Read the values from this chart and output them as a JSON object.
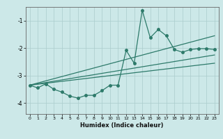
{
  "xlabel": "Humidex (Indice chaleur)",
  "xlim": [
    -0.5,
    23.5
  ],
  "ylim": [
    -4.4,
    -0.5
  ],
  "yticks": [
    -4,
    -3,
    -2,
    -1
  ],
  "xticks": [
    0,
    1,
    2,
    3,
    4,
    5,
    6,
    7,
    8,
    9,
    10,
    11,
    12,
    13,
    14,
    15,
    16,
    17,
    18,
    19,
    20,
    21,
    22,
    23
  ],
  "bg_color": "#cce8e8",
  "grid_color": "#aacccc",
  "line_color": "#2d7a6a",
  "zigzag_x": [
    0,
    1,
    2,
    3,
    4,
    5,
    6,
    7,
    8,
    9,
    10,
    11,
    12,
    13,
    14,
    15,
    16,
    17,
    18,
    19,
    20,
    21,
    22,
    23
  ],
  "zigzag_y": [
    -3.35,
    -3.45,
    -3.3,
    -3.5,
    -3.6,
    -3.75,
    -3.82,
    -3.72,
    -3.72,
    -3.55,
    -3.35,
    -3.35,
    -2.08,
    -2.55,
    -0.62,
    -1.62,
    -1.32,
    -1.55,
    -2.05,
    -2.15,
    -2.05,
    -2.02,
    -2.02,
    -2.05
  ],
  "line1_x": [
    0,
    23
  ],
  "line1_y": [
    -3.35,
    -1.55
  ],
  "line2_x": [
    0,
    23
  ],
  "line2_y": [
    -3.35,
    -2.25
  ],
  "line3_x": [
    0,
    23
  ],
  "line3_y": [
    -3.35,
    -2.55
  ],
  "marker_size": 2.5,
  "linewidth": 0.9
}
